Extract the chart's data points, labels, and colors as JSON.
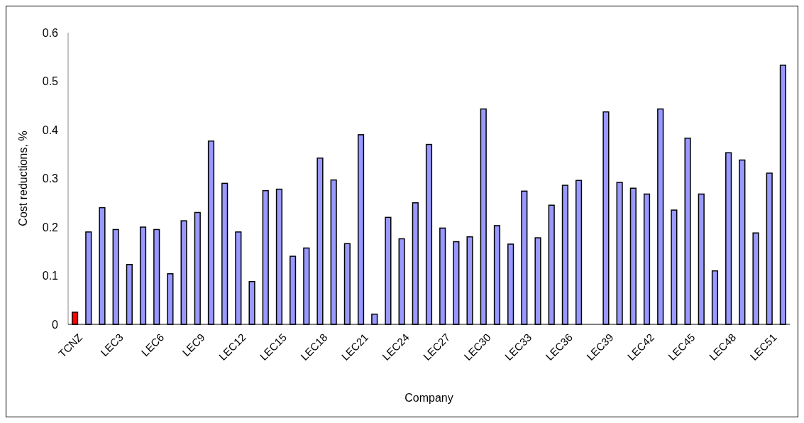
{
  "chart_data": {
    "type": "bar",
    "xlabel": "Company",
    "ylabel": "Cost reductions, %",
    "categories": [
      "TCNZ",
      null,
      null,
      "LEC3",
      null,
      null,
      "LEC6",
      null,
      null,
      "LEC9",
      null,
      null,
      "LEC12",
      null,
      null,
      "LEC15",
      null,
      null,
      "LEC18",
      null,
      null,
      "LEC21",
      null,
      null,
      "LEC24",
      null,
      null,
      "LEC27",
      null,
      null,
      "LEC30",
      null,
      null,
      "LEC33",
      null,
      null,
      "LEC36",
      null,
      null,
      "LEC39",
      null,
      null,
      "LEC42",
      null,
      null,
      "LEC45",
      null,
      null,
      "LEC48",
      null,
      null,
      "LEC51",
      null
    ],
    "values": [
      0.025,
      0.19,
      0.24,
      0.195,
      0.123,
      0.2,
      0.195,
      0.104,
      0.213,
      0.23,
      0.377,
      0.29,
      0.19,
      0.088,
      0.275,
      0.278,
      0.14,
      0.157,
      0.342,
      0.297,
      0.166,
      0.39,
      0.021,
      0.22,
      0.176,
      0.25,
      0.37,
      0.198,
      0.17,
      0.18,
      0.443,
      0.203,
      0.165,
      0.274,
      0.178,
      0.245,
      0.286,
      0.296,
      null,
      0.437,
      0.292,
      0.28,
      0.268,
      0.443,
      0.235,
      0.383,
      0.268,
      0.11,
      0.353,
      0.338,
      0.188,
      0.311,
      0.533
    ],
    "colors": [
      "#ff0000",
      "#9999ff",
      "#9999ff",
      "#9999ff",
      "#9999ff",
      "#9999ff",
      "#9999ff",
      "#9999ff",
      "#9999ff",
      "#9999ff",
      "#9999ff",
      "#9999ff",
      "#9999ff",
      "#9999ff",
      "#9999ff",
      "#9999ff",
      "#9999ff",
      "#9999ff",
      "#9999ff",
      "#9999ff",
      "#9999ff",
      "#9999ff",
      "#9999ff",
      "#9999ff",
      "#9999ff",
      "#9999ff",
      "#9999ff",
      "#9999ff",
      "#9999ff",
      "#9999ff",
      "#9999ff",
      "#9999ff",
      "#9999ff",
      "#9999ff",
      "#9999ff",
      "#9999ff",
      "#9999ff",
      "#9999ff",
      null,
      "#9999ff",
      "#9999ff",
      "#9999ff",
      "#9999ff",
      "#9999ff",
      "#9999ff",
      "#9999ff",
      "#9999ff",
      "#9999ff",
      "#9999ff",
      "#9999ff",
      "#9999ff",
      "#9999ff",
      "#9999ff"
    ],
    "ylim": [
      0,
      0.6
    ],
    "yticks": [
      0,
      0.1,
      0.2,
      0.3,
      0.4,
      0.5,
      0.6
    ],
    "grid": false
  }
}
